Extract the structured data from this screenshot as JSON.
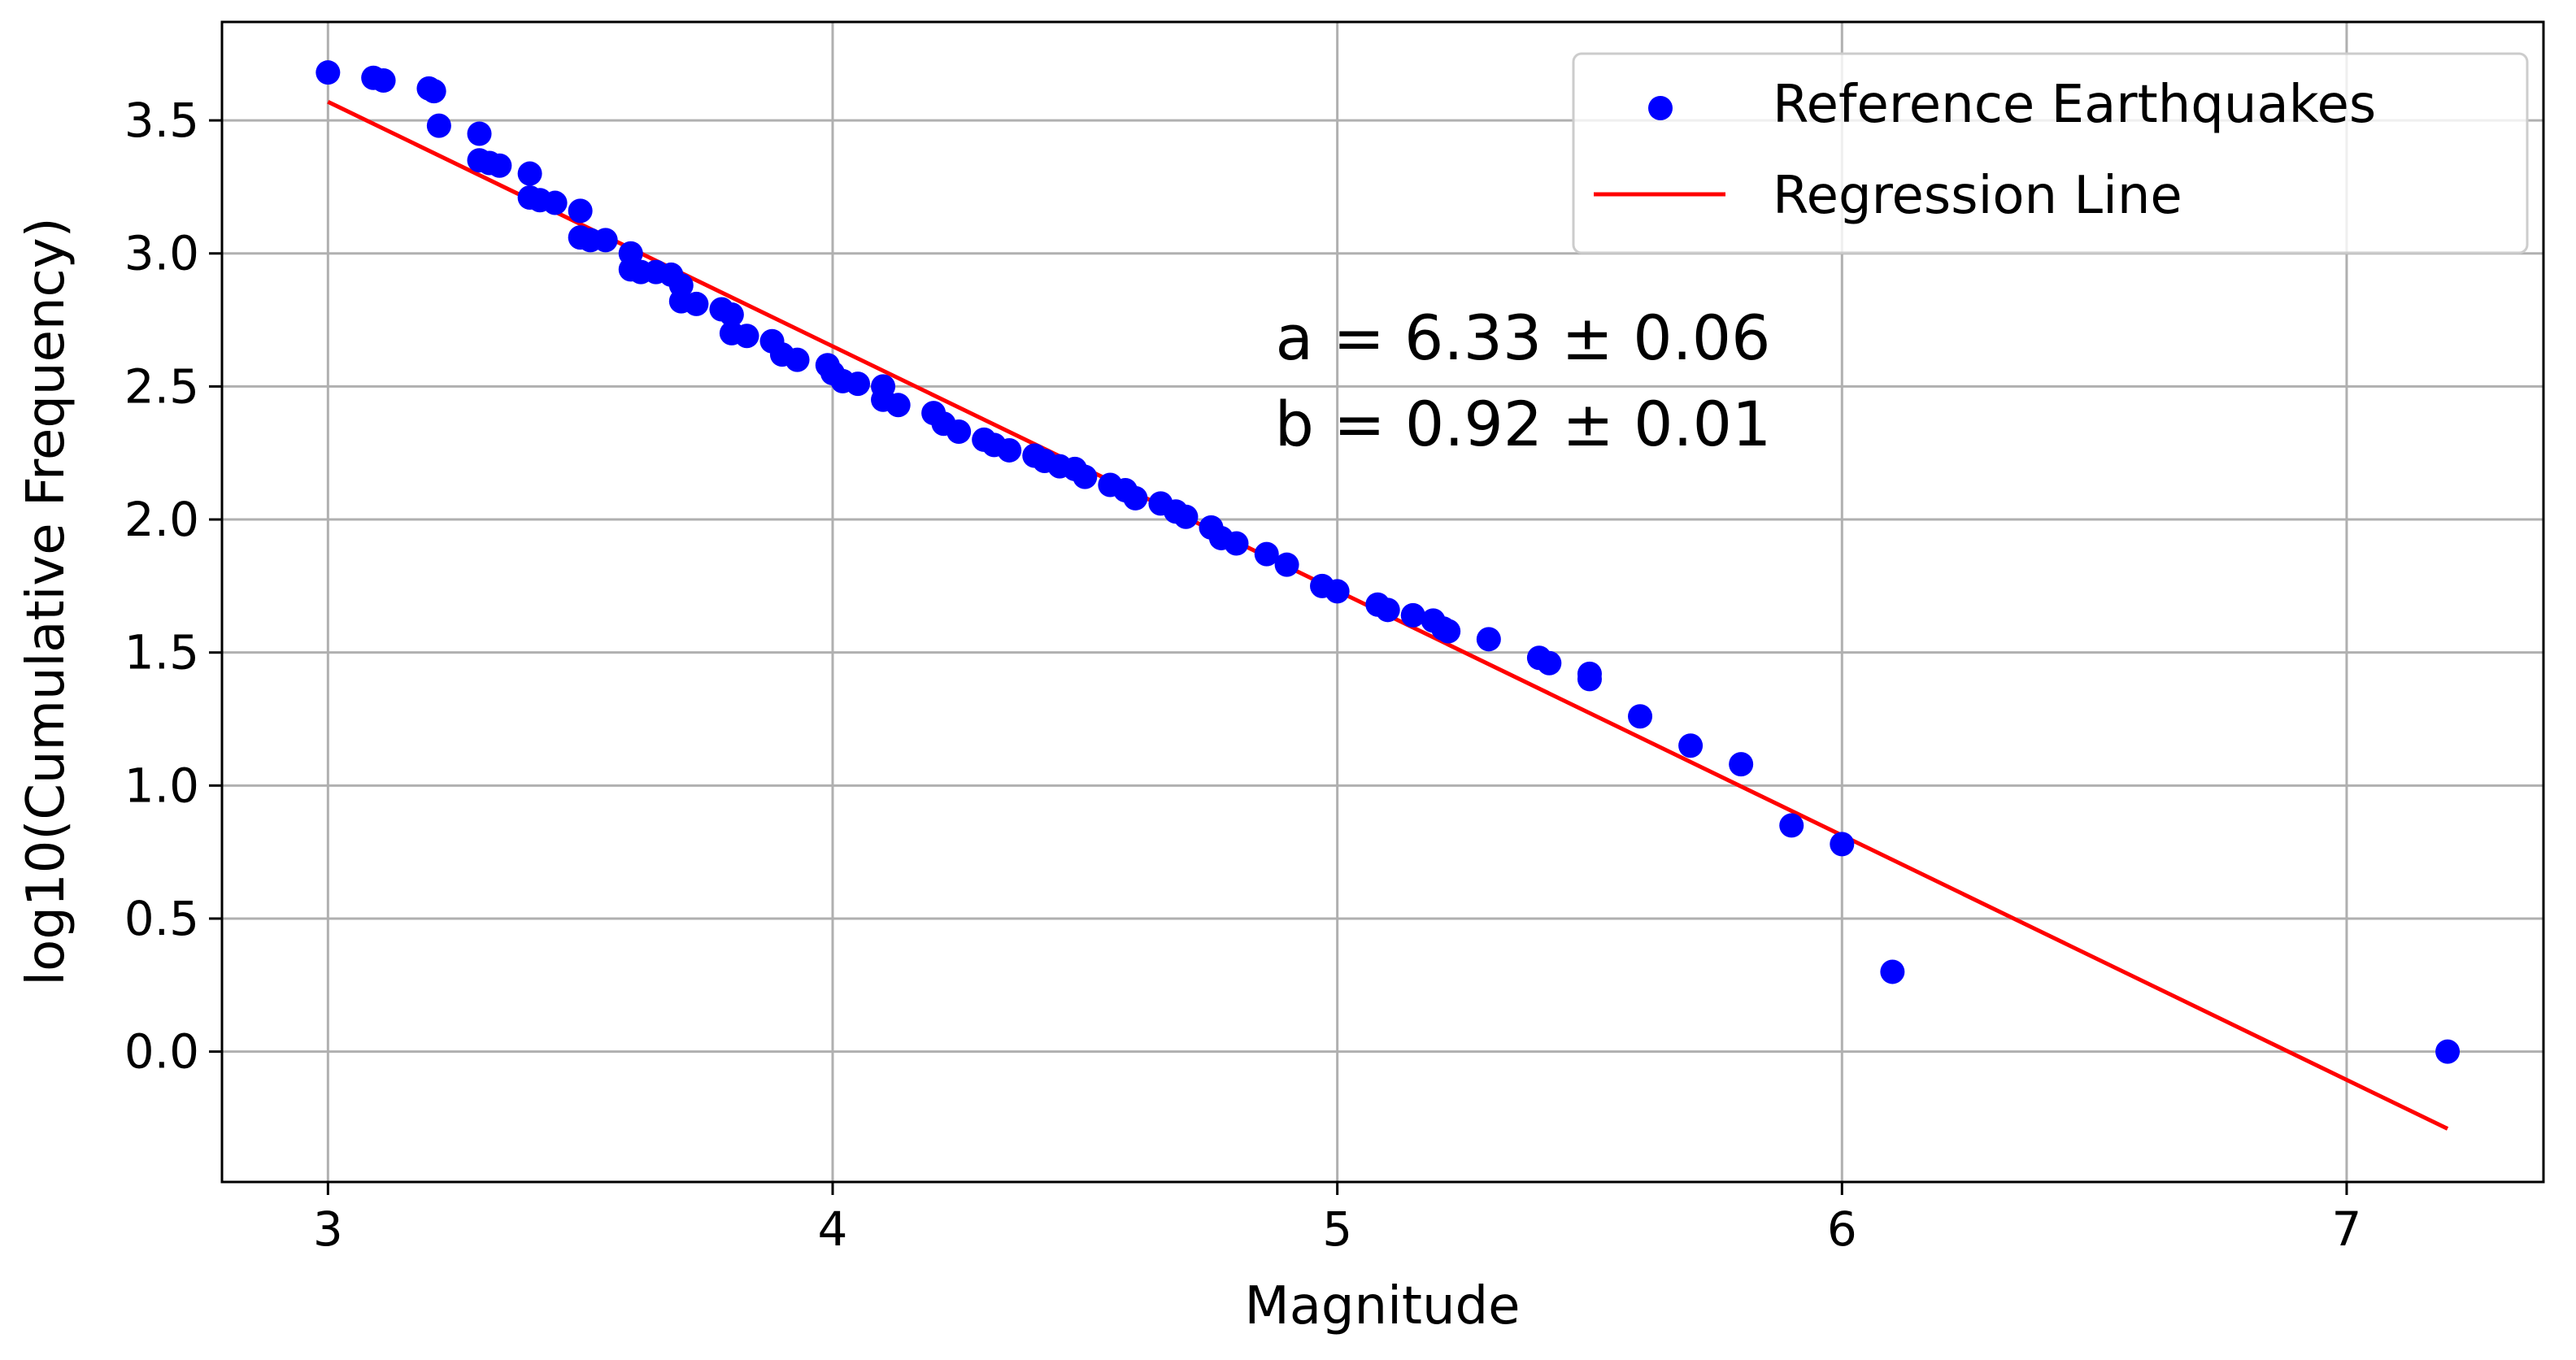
{
  "chart_data": {
    "type": "scatter",
    "title": "",
    "xlabel": "Magnitude",
    "ylabel": "log10(Cumulative Frequency)",
    "xlim": [
      2.79,
      7.39
    ],
    "ylim": [
      -0.49,
      3.87
    ],
    "xticks": [
      3,
      4,
      5,
      6,
      7
    ],
    "yticks": [
      0.0,
      0.5,
      1.0,
      1.5,
      2.0,
      2.5,
      3.0,
      3.5
    ],
    "xtick_labels": [
      "3",
      "4",
      "5",
      "6",
      "7"
    ],
    "ytick_labels": [
      "0.0",
      "0.5",
      "1.0",
      "1.5",
      "2.0",
      "2.5",
      "3.0",
      "3.5"
    ],
    "grid": true,
    "legend": {
      "position": "top-right",
      "entries": [
        {
          "label": "Reference Earthquakes",
          "marker": "circle",
          "color": "#0000ff"
        },
        {
          "label": "Regression Line",
          "marker": "line",
          "color": "#ff0000"
        }
      ]
    },
    "annotations": [
      "a = 6.33 ± 0.06",
      "b = 0.92 ± 0.01"
    ],
    "series": [
      {
        "name": "Reference Earthquakes",
        "kind": "scatter",
        "color": "#0000ff",
        "points": [
          [
            3.0,
            3.68
          ],
          [
            3.09,
            3.66
          ],
          [
            3.11,
            3.65
          ],
          [
            3.2,
            3.62
          ],
          [
            3.21,
            3.61
          ],
          [
            3.22,
            3.48
          ],
          [
            3.3,
            3.45
          ],
          [
            3.3,
            3.35
          ],
          [
            3.32,
            3.34
          ],
          [
            3.34,
            3.33
          ],
          [
            3.4,
            3.3
          ],
          [
            3.4,
            3.21
          ],
          [
            3.42,
            3.2
          ],
          [
            3.45,
            3.19
          ],
          [
            3.5,
            3.16
          ],
          [
            3.5,
            3.06
          ],
          [
            3.52,
            3.05
          ],
          [
            3.55,
            3.05
          ],
          [
            3.6,
            3.0
          ],
          [
            3.6,
            2.94
          ],
          [
            3.62,
            2.93
          ],
          [
            3.65,
            2.93
          ],
          [
            3.68,
            2.92
          ],
          [
            3.7,
            2.88
          ],
          [
            3.7,
            2.82
          ],
          [
            3.73,
            2.81
          ],
          [
            3.78,
            2.79
          ],
          [
            3.8,
            2.77
          ],
          [
            3.8,
            2.7
          ],
          [
            3.83,
            2.69
          ],
          [
            3.88,
            2.67
          ],
          [
            3.9,
            2.62
          ],
          [
            3.93,
            2.6
          ],
          [
            3.99,
            2.58
          ],
          [
            4.0,
            2.55
          ],
          [
            4.02,
            2.52
          ],
          [
            4.05,
            2.51
          ],
          [
            4.1,
            2.5
          ],
          [
            4.1,
            2.45
          ],
          [
            4.13,
            2.43
          ],
          [
            4.2,
            2.4
          ],
          [
            4.22,
            2.36
          ],
          [
            4.25,
            2.33
          ],
          [
            4.3,
            2.3
          ],
          [
            4.32,
            2.28
          ],
          [
            4.35,
            2.26
          ],
          [
            4.4,
            2.24
          ],
          [
            4.42,
            2.22
          ],
          [
            4.45,
            2.2
          ],
          [
            4.48,
            2.19
          ],
          [
            4.5,
            2.16
          ],
          [
            4.55,
            2.13
          ],
          [
            4.58,
            2.11
          ],
          [
            4.6,
            2.08
          ],
          [
            4.65,
            2.06
          ],
          [
            4.68,
            2.03
          ],
          [
            4.7,
            2.01
          ],
          [
            4.75,
            1.97
          ],
          [
            4.77,
            1.93
          ],
          [
            4.8,
            1.91
          ],
          [
            4.86,
            1.87
          ],
          [
            4.9,
            1.83
          ],
          [
            4.97,
            1.75
          ],
          [
            5.0,
            1.73
          ],
          [
            5.08,
            1.68
          ],
          [
            5.1,
            1.66
          ],
          [
            5.15,
            1.64
          ],
          [
            5.19,
            1.62
          ],
          [
            5.21,
            1.59
          ],
          [
            5.22,
            1.58
          ],
          [
            5.3,
            1.55
          ],
          [
            5.4,
            1.48
          ],
          [
            5.42,
            1.46
          ],
          [
            5.5,
            1.42
          ],
          [
            5.5,
            1.4
          ],
          [
            5.6,
            1.26
          ],
          [
            5.7,
            1.15
          ],
          [
            5.8,
            1.08
          ],
          [
            5.9,
            0.85
          ],
          [
            6.0,
            0.78
          ],
          [
            6.1,
            0.3
          ],
          [
            7.2,
            0.0
          ]
        ]
      },
      {
        "name": "Regression Line",
        "kind": "line",
        "color": "#ff0000",
        "points": [
          [
            3.0,
            3.57
          ],
          [
            7.2,
            -0.29
          ]
        ]
      }
    ]
  }
}
